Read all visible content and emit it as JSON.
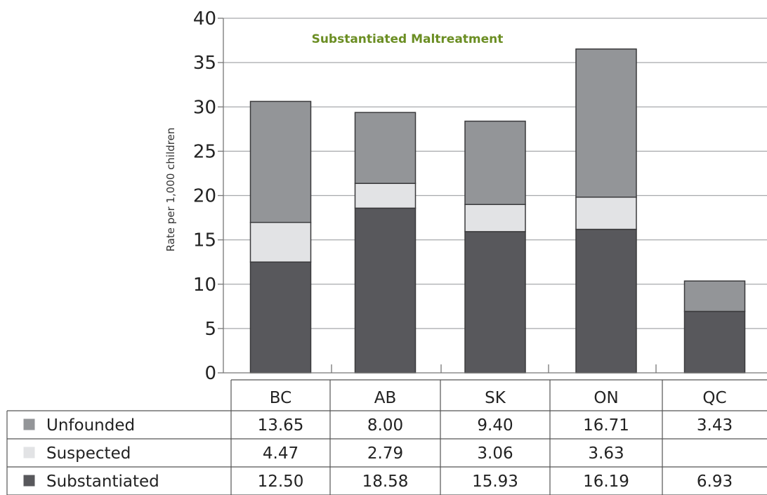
{
  "chart_data": {
    "type": "bar",
    "stacked": true,
    "title": "Substantiated Maltreatment",
    "ylabel": "Rate per 1,000 children",
    "xlabel": "",
    "ylim": [
      0,
      40
    ],
    "yticks": [
      0,
      5,
      10,
      15,
      20,
      25,
      30,
      35,
      40
    ],
    "categories": [
      "BC",
      "AB",
      "SK",
      "ON",
      "QC"
    ],
    "grid": true,
    "series": [
      {
        "name": "Substantiated",
        "color": "#58585c",
        "values": [
          12.5,
          18.58,
          15.93,
          16.19,
          6.93
        ],
        "labels": [
          "12.50",
          "18.58",
          "15.93",
          "16.19",
          "6.93"
        ]
      },
      {
        "name": "Suspected",
        "color": "#e2e3e5",
        "values": [
          4.47,
          2.79,
          3.06,
          3.63,
          null
        ],
        "labels": [
          "4.47",
          "2.79",
          "3.06",
          "3.63",
          ""
        ]
      },
      {
        "name": "Unfounded",
        "color": "#939598",
        "values": [
          13.65,
          8.0,
          9.4,
          16.71,
          3.43
        ],
        "labels": [
          "13.65",
          "8.00",
          "9.40",
          "16.71",
          "3.43"
        ]
      }
    ],
    "table_row_order": [
      "Unfounded",
      "Suspected",
      "Substantiated"
    ]
  }
}
